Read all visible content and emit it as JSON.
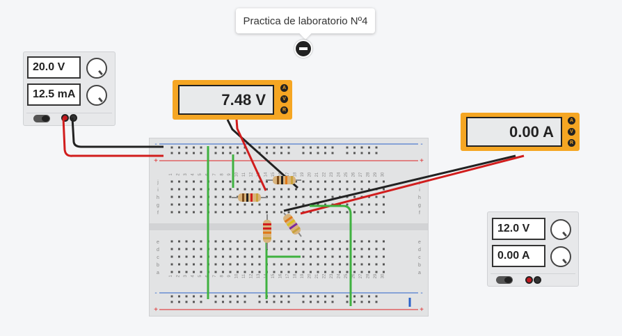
{
  "project": {
    "title": "Practica de laboratorio Nº4"
  },
  "supply_left": {
    "voltage": "20.0 V",
    "current": "12.5 mA"
  },
  "supply_right": {
    "voltage": "12.0 V",
    "current": "0.00 A"
  },
  "voltmeter": {
    "reading": "7.48 V",
    "buttons": [
      "A",
      "V",
      "R"
    ]
  },
  "ammeter": {
    "reading": "0.00 A",
    "buttons": [
      "A",
      "V",
      "R"
    ]
  },
  "breadboard": {
    "row_letters_top": [
      "j",
      "i",
      "h",
      "g",
      "f"
    ],
    "row_letters_bottom": [
      "e",
      "d",
      "c",
      "b",
      "a"
    ],
    "column_numbers": [
      "1",
      "2",
      "3",
      "4",
      "5",
      "6",
      "7",
      "8",
      "9",
      "10",
      "11",
      "12",
      "13",
      "14",
      "15",
      "16",
      "17",
      "18",
      "19",
      "20",
      "21",
      "22",
      "23",
      "24",
      "25",
      "26",
      "27",
      "28",
      "29",
      "30"
    ],
    "rail_plus": "+",
    "rail_minus": "-"
  },
  "colors": {
    "meter_orange": "#f5a623",
    "wire_red": "#d11d1d",
    "wire_black": "#222222",
    "wire_green": "#3fb13f",
    "rail_red": "#d22",
    "rail_blue": "#2a62c9"
  }
}
